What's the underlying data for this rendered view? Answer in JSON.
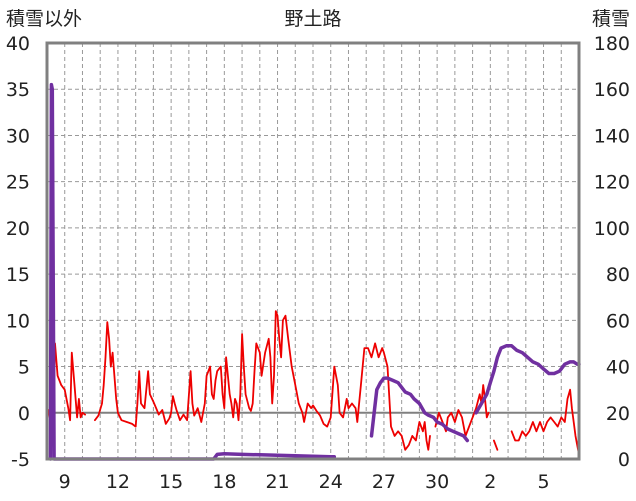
{
  "chart_data": {
    "type": "line",
    "title": "野土路",
    "left_axis_label": "積雪以外",
    "right_axis_label": "積雪",
    "left_axis": {
      "min": -5,
      "max": 40,
      "ticks": [
        -5,
        0,
        5,
        10,
        15,
        20,
        25,
        30,
        35,
        40
      ]
    },
    "right_axis": {
      "min": 0,
      "max": 180,
      "ticks": [
        0,
        20,
        40,
        60,
        80,
        100,
        120,
        140,
        160,
        180
      ]
    },
    "x_axis": {
      "min": 0,
      "max": 30,
      "tick_positions": [
        1,
        4,
        7,
        10,
        13,
        16,
        19,
        22,
        25,
        28
      ],
      "tick_labels": [
        "9",
        "12",
        "15",
        "18",
        "21",
        "24",
        "27",
        "30",
        "2",
        "5"
      ]
    },
    "colors": {
      "temperature": "#ee0000",
      "snow": "#7030a0",
      "frame": "#808080",
      "grid": "#999999",
      "zero_line": "#808080"
    },
    "series": [
      {
        "axis": "left",
        "color": "#ee0000",
        "segments": [
          [
            [
              0,
              0.5
            ],
            [
              0.1,
              0.2
            ],
            [
              0.2,
              -1
            ],
            [
              0.3,
              -2
            ],
            [
              0.45,
              7.5
            ],
            [
              0.6,
              4
            ],
            [
              0.8,
              3
            ],
            [
              1.0,
              2.5
            ],
            [
              1.2,
              0.5
            ],
            [
              1.3,
              -0.8
            ],
            [
              1.4,
              6.5
            ],
            [
              1.55,
              3
            ],
            [
              1.7,
              -0.5
            ],
            [
              1.8,
              1.5
            ],
            [
              1.9,
              -0.5
            ],
            [
              2.0,
              0
            ],
            [
              2.15,
              -0.2
            ]
          ],
          [
            [
              2.7,
              -0.8
            ],
            [
              2.9,
              -0.3
            ],
            [
              3.1,
              1
            ],
            [
              3.2,
              3
            ],
            [
              3.3,
              6
            ],
            [
              3.4,
              9.8
            ],
            [
              3.5,
              8
            ],
            [
              3.6,
              5
            ],
            [
              3.7,
              6.5
            ],
            [
              3.8,
              4
            ],
            [
              3.9,
              1.5
            ],
            [
              4.0,
              0
            ],
            [
              4.2,
              -0.8
            ],
            [
              4.5,
              -1
            ],
            [
              4.8,
              -1.2
            ],
            [
              5.0,
              -1.5
            ],
            [
              5.1,
              1
            ],
            [
              5.2,
              4.5
            ],
            [
              5.3,
              1
            ],
            [
              5.5,
              0.5
            ],
            [
              5.7,
              4.5
            ],
            [
              5.8,
              2
            ],
            [
              6.0,
              1.2
            ],
            [
              6.2,
              0.3
            ],
            [
              6.3,
              -0.2
            ],
            [
              6.5,
              0.3
            ],
            [
              6.7,
              -1.2
            ],
            [
              6.9,
              -0.6
            ],
            [
              7.0,
              0
            ],
            [
              7.1,
              1.8
            ],
            [
              7.2,
              1
            ],
            [
              7.3,
              0.3
            ],
            [
              7.5,
              -0.8
            ],
            [
              7.7,
              -0.2
            ],
            [
              7.9,
              -0.8
            ],
            [
              8.1,
              4.5
            ],
            [
              8.2,
              1
            ],
            [
              8.3,
              -0.3
            ],
            [
              8.5,
              0.5
            ],
            [
              8.7,
              -1
            ],
            [
              8.9,
              1
            ],
            [
              9.0,
              4
            ],
            [
              9.2,
              5
            ],
            [
              9.3,
              2
            ],
            [
              9.4,
              1.5
            ],
            [
              9.5,
              3.5
            ],
            [
              9.6,
              4.5
            ],
            [
              9.8,
              5
            ],
            [
              9.9,
              2
            ],
            [
              10.0,
              0.5
            ],
            [
              10.1,
              6
            ],
            [
              10.3,
              2
            ],
            [
              10.4,
              1
            ],
            [
              10.5,
              -0.5
            ],
            [
              10.6,
              1.5
            ],
            [
              10.7,
              1
            ],
            [
              10.8,
              -0.8
            ],
            [
              10.9,
              2
            ],
            [
              11.0,
              8.5
            ],
            [
              11.1,
              5
            ],
            [
              11.2,
              2
            ],
            [
              11.4,
              0.5
            ],
            [
              11.5,
              0.2
            ],
            [
              11.6,
              1
            ],
            [
              11.7,
              4.5
            ],
            [
              11.8,
              7.5
            ],
            [
              12.0,
              6.5
            ],
            [
              12.1,
              4
            ],
            [
              12.3,
              6.5
            ],
            [
              12.5,
              8
            ],
            [
              12.6,
              6
            ],
            [
              12.7,
              1
            ],
            [
              12.8,
              4
            ],
            [
              12.9,
              11
            ],
            [
              13.0,
              10.5
            ],
            [
              13.1,
              8
            ],
            [
              13.2,
              6
            ],
            [
              13.3,
              10
            ],
            [
              13.45,
              10.5
            ],
            [
              13.6,
              8
            ],
            [
              13.8,
              5
            ],
            [
              14.0,
              3
            ],
            [
              14.2,
              1
            ],
            [
              14.4,
              0
            ],
            [
              14.5,
              -1
            ],
            [
              14.7,
              1
            ],
            [
              14.9,
              0.5
            ],
            [
              15.0,
              0.8
            ],
            [
              15.2,
              0.2
            ],
            [
              15.4,
              -0.3
            ],
            [
              15.6,
              -1.2
            ],
            [
              15.8,
              -1.5
            ],
            [
              16.0,
              -0.5
            ],
            [
              16.2,
              5
            ],
            [
              16.4,
              3
            ],
            [
              16.5,
              0
            ],
            [
              16.7,
              -0.5
            ],
            [
              16.9,
              1.5
            ],
            [
              17.0,
              0.5
            ],
            [
              17.2,
              1
            ],
            [
              17.4,
              0.5
            ],
            [
              17.5,
              -1
            ],
            [
              17.7,
              3
            ],
            [
              17.9,
              7
            ],
            [
              18.1,
              7
            ],
            [
              18.3,
              6
            ],
            [
              18.5,
              7.5
            ],
            [
              18.7,
              6
            ],
            [
              18.9,
              7
            ],
            [
              19.0,
              6.5
            ],
            [
              19.2,
              5
            ],
            [
              19.4,
              -1.5
            ],
            [
              19.6,
              -2.5
            ],
            [
              19.8,
              -2
            ],
            [
              20.0,
              -2.5
            ],
            [
              20.2,
              -4
            ],
            [
              20.4,
              -3.5
            ],
            [
              20.6,
              -2.5
            ],
            [
              20.8,
              -3
            ],
            [
              21.0,
              -1
            ],
            [
              21.2,
              -2
            ],
            [
              21.3,
              -1
            ],
            [
              21.4,
              -3
            ],
            [
              21.5,
              -4
            ],
            [
              21.6,
              -2.5
            ]
          ],
          [
            [
              21.9,
              -1.5
            ],
            [
              22.1,
              0
            ],
            [
              22.3,
              -1
            ],
            [
              22.5,
              -2
            ],
            [
              22.6,
              -0.5
            ],
            [
              22.8,
              0
            ],
            [
              23.0,
              -1
            ],
            [
              23.2,
              0.3
            ],
            [
              23.4,
              -0.5
            ],
            [
              23.6,
              -2.5
            ],
            [
              23.8,
              -1.5
            ],
            [
              24.0,
              -0.5
            ],
            [
              24.2,
              0.5
            ],
            [
              24.4,
              2
            ],
            [
              24.5,
              1
            ],
            [
              24.6,
              3
            ],
            [
              24.7,
              1.5
            ],
            [
              24.8,
              -0.5
            ],
            [
              24.9,
              0
            ]
          ],
          [
            [
              25.2,
              -3
            ],
            [
              25.4,
              -4
            ]
          ],
          [
            [
              26.2,
              -2
            ],
            [
              26.4,
              -3
            ],
            [
              26.6,
              -3
            ],
            [
              26.8,
              -2
            ],
            [
              27.0,
              -2.5
            ],
            [
              27.2,
              -2
            ],
            [
              27.4,
              -1
            ],
            [
              27.6,
              -2
            ],
            [
              27.8,
              -1
            ],
            [
              28.0,
              -2
            ],
            [
              28.2,
              -1
            ],
            [
              28.4,
              -0.5
            ],
            [
              28.6,
              -1
            ],
            [
              28.8,
              -1.5
            ],
            [
              29.0,
              -0.5
            ],
            [
              29.2,
              -1
            ],
            [
              29.35,
              1.5
            ],
            [
              29.5,
              2.5
            ],
            [
              29.6,
              0.5
            ],
            [
              29.7,
              -1
            ],
            [
              29.8,
              -2.5
            ],
            [
              29.9,
              -3.5
            ],
            [
              30.0,
              -4.5
            ]
          ]
        ]
      },
      {
        "axis": "right",
        "color": "#7030a0",
        "segments": [
          [
            [
              0.2,
              0
            ],
            [
              0.25,
              162
            ],
            [
              0.3,
              160
            ],
            [
              0.35,
              80
            ],
            [
              0.4,
              0
            ],
            [
              9.4,
              0
            ],
            [
              9.5,
              1
            ],
            [
              9.6,
              2
            ],
            [
              10.0,
              2.3
            ],
            [
              11.0,
              2.0
            ],
            [
              12.0,
              1.8
            ],
            [
              13.0,
              1.6
            ],
            [
              14.0,
              1.4
            ],
            [
              15.0,
              1.2
            ],
            [
              16.0,
              1.0
            ],
            [
              16.2,
              1.0
            ]
          ],
          [
            [
              18.3,
              10
            ],
            [
              18.6,
              30
            ],
            [
              18.8,
              33
            ],
            [
              19.0,
              35
            ],
            [
              19.2,
              35
            ],
            [
              19.5,
              34
            ],
            [
              19.8,
              33
            ],
            [
              20.0,
              31
            ],
            [
              20.2,
              29
            ],
            [
              20.5,
              28
            ],
            [
              20.7,
              26
            ],
            [
              21.0,
              24
            ],
            [
              21.3,
              20
            ],
            [
              21.5,
              19
            ],
            [
              21.8,
              18
            ],
            [
              22.0,
              16
            ],
            [
              22.3,
              15
            ],
            [
              22.6,
              13
            ],
            [
              22.9,
              12
            ],
            [
              23.2,
              11
            ],
            [
              23.5,
              10
            ],
            [
              23.7,
              8
            ]
          ],
          [
            [
              24.2,
              20
            ],
            [
              24.5,
              24
            ],
            [
              24.8,
              28
            ],
            [
              25.0,
              33
            ],
            [
              25.2,
              38
            ],
            [
              25.4,
              44
            ],
            [
              25.6,
              48
            ],
            [
              25.9,
              49
            ],
            [
              26.2,
              49
            ],
            [
              26.5,
              47
            ],
            [
              26.8,
              46
            ],
            [
              27.1,
              44
            ],
            [
              27.4,
              42
            ],
            [
              27.7,
              41
            ],
            [
              28.0,
              39
            ],
            [
              28.3,
              37
            ],
            [
              28.6,
              37
            ],
            [
              28.9,
              38
            ],
            [
              29.2,
              41
            ],
            [
              29.5,
              42
            ],
            [
              29.7,
              42
            ],
            [
              29.9,
              41
            ],
            [
              30.0,
              41
            ]
          ]
        ]
      }
    ]
  }
}
